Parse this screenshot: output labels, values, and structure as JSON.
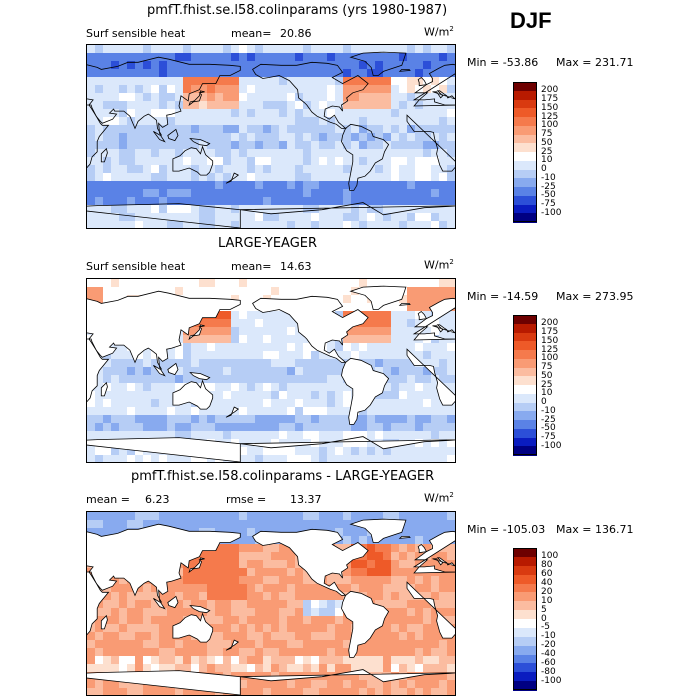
{
  "season": "DJF",
  "chart_data": [
    {
      "type": "heatmap",
      "title": "pmfT.fhist.se.l58.colinparams (yrs 1980-1987)",
      "variable": "Surf sensible heat",
      "stat_label": "mean=",
      "stat_value": "20.86",
      "units_base": "W/m",
      "units_exp": "2",
      "min_label": "Min = -53.86",
      "max_label": "Max = 231.71",
      "min": -53.86,
      "max": 231.71,
      "levels": [
        "200",
        "175",
        "150",
        "125",
        "100",
        "75",
        "50",
        "25",
        "10",
        "0",
        "-10",
        "-25",
        "-50",
        "-75",
        "-100"
      ],
      "colors": [
        "#6e0000",
        "#b81a00",
        "#d93a10",
        "#ee5a28",
        "#f57a4c",
        "#f99b74",
        "#fbbca0",
        "#fde0cf",
        "#ffffff",
        "#dbe8fb",
        "#b6cdf5",
        "#88aaef",
        "#5a82e6",
        "#2c4fd8",
        "#0a1cc0",
        "#000082"
      ]
    },
    {
      "type": "heatmap",
      "title": "LARGE-YEAGER",
      "variable": "Surf sensible heat",
      "stat_label": "mean=",
      "stat_value": "14.63",
      "units_base": "W/m",
      "units_exp": "2",
      "min_label": "Min = -14.59",
      "max_label": "Max = 273.95",
      "min": -14.59,
      "max": 273.95,
      "levels": [
        "200",
        "175",
        "150",
        "125",
        "100",
        "75",
        "50",
        "25",
        "10",
        "0",
        "-10",
        "-25",
        "-50",
        "-75",
        "-100"
      ],
      "colors": [
        "#6e0000",
        "#b81a00",
        "#d93a10",
        "#ee5a28",
        "#f57a4c",
        "#f99b74",
        "#fbbca0",
        "#fde0cf",
        "#ffffff",
        "#dbe8fb",
        "#b6cdf5",
        "#88aaef",
        "#5a82e6",
        "#2c4fd8",
        "#0a1cc0",
        "#000082"
      ]
    },
    {
      "type": "heatmap",
      "title": "pmfT.fhist.se.l58.colinparams - LARGE-YEAGER",
      "stat_label": "mean =",
      "stat_value": "6.23",
      "rmse_label": "rmse =",
      "rmse_value": "13.37",
      "units_base": "W/m",
      "units_exp": "2",
      "min_label": "Min = -105.03",
      "max_label": "Max = 136.71",
      "min": -105.03,
      "max": 136.71,
      "levels": [
        "100",
        "80",
        "60",
        "40",
        "20",
        "10",
        "5",
        "0",
        "-5",
        "-10",
        "-20",
        "-40",
        "-60",
        "-80",
        "-100"
      ],
      "colors": [
        "#6e0000",
        "#b81a00",
        "#d93a10",
        "#ee5a28",
        "#f57a4c",
        "#f99b74",
        "#fbbca0",
        "#fde0cf",
        "#ffffff",
        "#dbe8fb",
        "#b6cdf5",
        "#88aaef",
        "#5a82e6",
        "#2c4fd8",
        "#0a1cc0",
        "#000082"
      ]
    }
  ]
}
